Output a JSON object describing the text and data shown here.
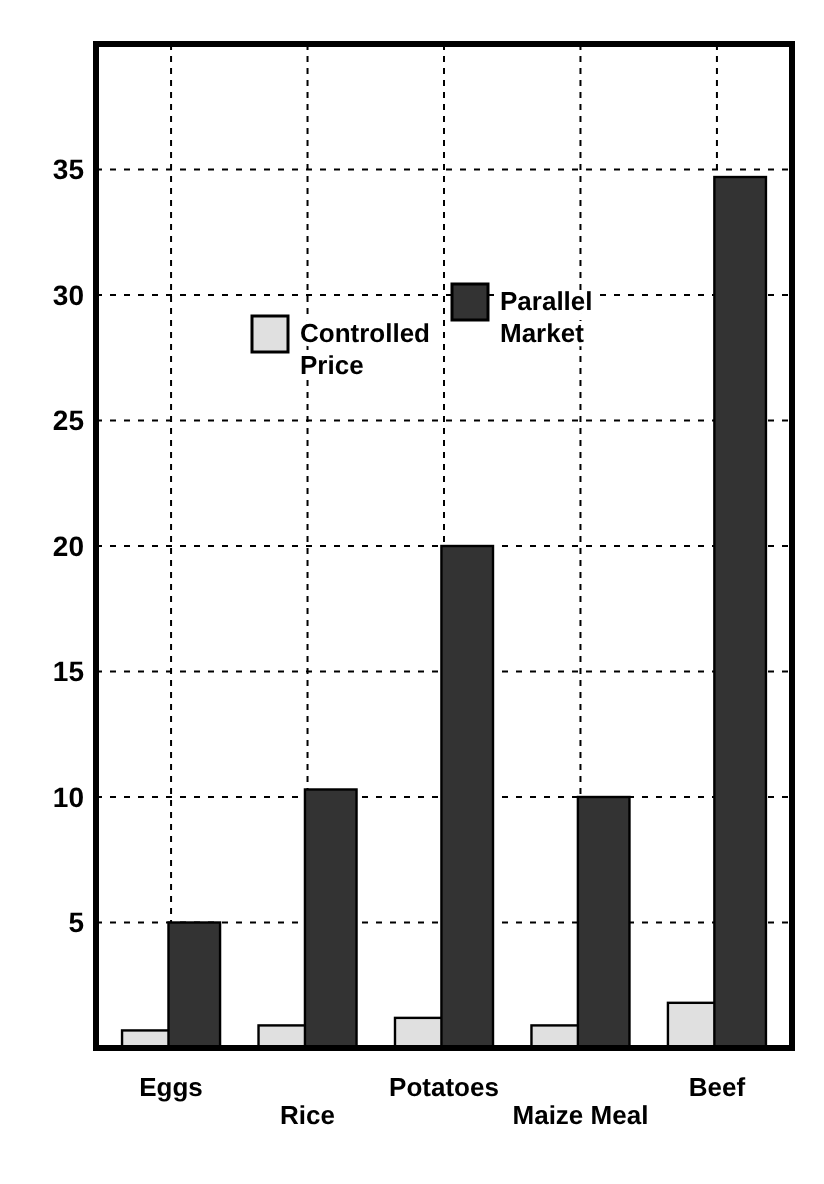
{
  "chart_data": {
    "type": "bar",
    "categories": [
      "Eggs",
      "Rice",
      "Potatoes",
      "Maize Meal",
      "Beef"
    ],
    "series": [
      {
        "name": "Controlled Price",
        "color": "#e0e0e0",
        "values": [
          0.7,
          0.9,
          1.2,
          0.9,
          1.8
        ]
      },
      {
        "name": "Parallel Market",
        "color": "#333333",
        "values": [
          5,
          10.3,
          20,
          10,
          34.7
        ]
      }
    ],
    "ylim": [
      0,
      40
    ],
    "yticks": [
      5,
      10,
      15,
      20,
      25,
      30,
      35
    ],
    "grid": true,
    "legend": "top"
  }
}
